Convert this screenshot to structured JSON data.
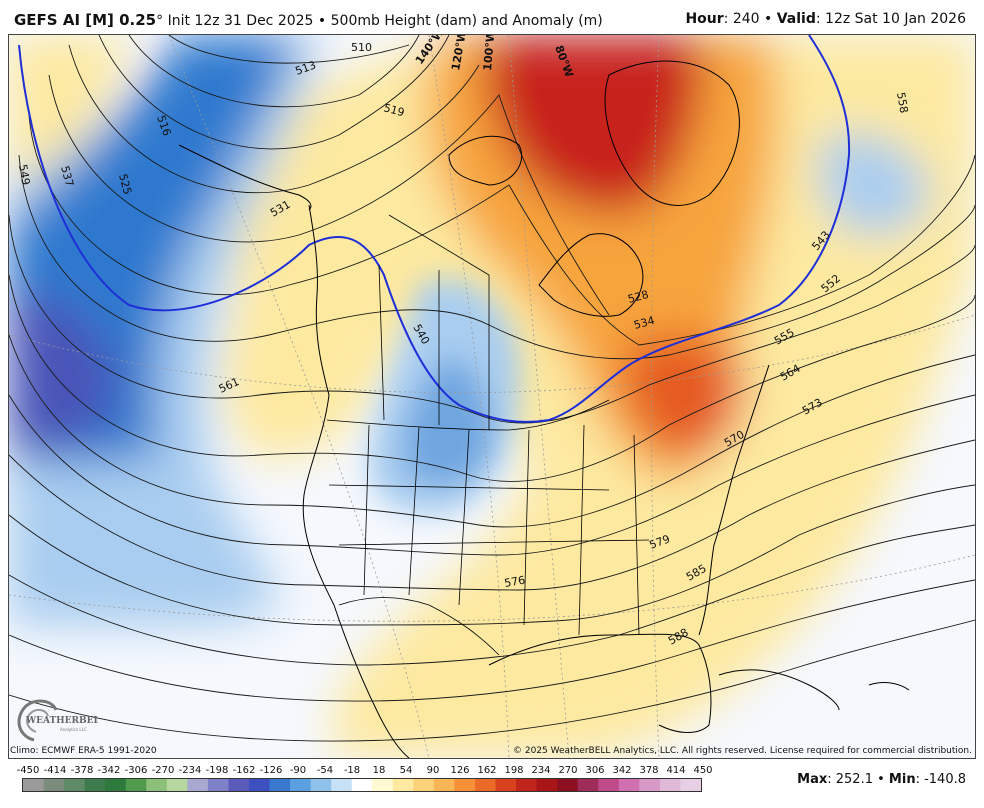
{
  "header": {
    "model": "GEFS AI [M] 0.25",
    "degree": "°",
    "init": " Init 12z 31 Dec 2025",
    "bullet": " • ",
    "field": "500mb Height (dam) and Anomaly (m)",
    "hour_label": "Hour",
    "hour_value": ": 240",
    "valid_label": "Valid",
    "valid_value": ": 12z Sat 10 Jan 2026"
  },
  "map": {
    "contour_labels": [
      "510",
      "513",
      "516",
      "519",
      "525",
      "528",
      "531",
      "534",
      "537",
      "540",
      "543",
      "549",
      "552",
      "555",
      "558",
      "561",
      "564",
      "570",
      "573",
      "576",
      "579",
      "585",
      "588"
    ],
    "longitude_labels": [
      "140°W",
      "120°W",
      "100°W",
      "80°W"
    ],
    "anomaly_colors": {
      "strong_negative": "#4a55b8",
      "negative": "#2f79cf",
      "weak_negative": "#a9cdf0",
      "neutral": "#f5f8fd",
      "weak_positive": "#fde9a0",
      "positive": "#f7a43c",
      "strong_positive": "#c8231a",
      "line_540": "#1f2fd8"
    }
  },
  "logo": {
    "text": "WEATHERBELL",
    "sub": "Analytics LLC"
  },
  "footer": {
    "climo": "Climo: ECMWF ERA-5 1991-2020",
    "copyright": "© 2025 WeatherBELL Analytics, LLC. All rights reserved. License required for commercial distribution.",
    "colorbar_ticks": [
      "-450",
      "-414",
      "-378",
      "-342",
      "-306",
      "-270",
      "-234",
      "-198",
      "-162",
      "-126",
      "-90",
      "-54",
      "-18",
      "18",
      "54",
      "90",
      "126",
      "162",
      "198",
      "234",
      "270",
      "306",
      "342",
      "378",
      "414",
      "450"
    ],
    "colorbar_colors": [
      "#9a9a9a",
      "#7c8c7c",
      "#5e8a68",
      "#3d7a4c",
      "#2e7a3c",
      "#4f9a4c",
      "#8cc07a",
      "#b6d8a0",
      "#a8a8d0",
      "#8080c8",
      "#5a5ab8",
      "#3c50c0",
      "#3a78d0",
      "#5aa0e0",
      "#8ec2ec",
      "#c6e0f6",
      "#ffffff",
      "#fffad2",
      "#fde9a0",
      "#fbd27a",
      "#f9b556",
      "#f59038",
      "#ec6a28",
      "#d8401e",
      "#c0241a",
      "#a81618",
      "#8c1020",
      "#a02c5a",
      "#c04a8a",
      "#d070b0",
      "#d898c8",
      "#e0b8d8",
      "#e8d0e4"
    ],
    "max_label": "Max",
    "max_value": ": 252.1",
    "min_label": "Min",
    "min_value": ": -140.8"
  }
}
